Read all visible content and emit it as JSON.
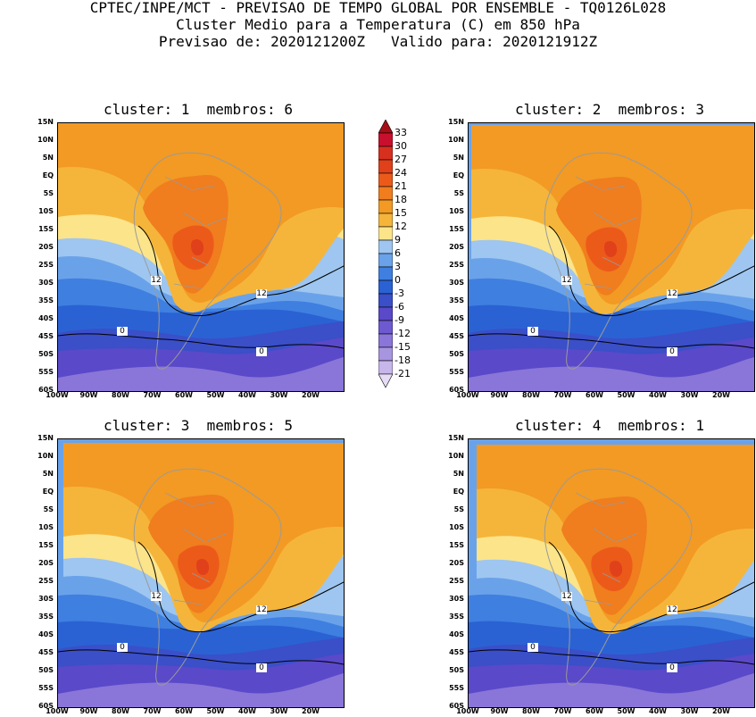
{
  "header": {
    "line1": "CPTEC/INPE/MCT - PREVISAO DE TEMPO GLOBAL POR ENSEMBLE - TQ0126L028",
    "line2": "Cluster Medio para a Temperatura (C) em 850 hPa",
    "line3": "Previsao de: 2020121200Z   Valido para: 2020121912Z"
  },
  "panels": [
    {
      "title": "cluster: 1  membros: 6"
    },
    {
      "title": "cluster: 2  membros: 3"
    },
    {
      "title": "cluster: 3  membros: 5"
    },
    {
      "title": "cluster: 4  membros: 1"
    }
  ],
  "lat_labels": [
    "15N",
    "10N",
    "5N",
    "EQ",
    "5S",
    "10S",
    "15S",
    "20S",
    "25S",
    "30S",
    "35S",
    "40S",
    "45S",
    "50S",
    "55S",
    "60S"
  ],
  "lon_labels": [
    "100W",
    "90W",
    "80W",
    "70W",
    "60W",
    "50W",
    "40W",
    "30W",
    "20W"
  ],
  "contour_labels": [
    "12",
    "0"
  ],
  "colorbar": {
    "levels": [
      "33",
      "30",
      "27",
      "24",
      "21",
      "18",
      "15",
      "12",
      "9",
      "6",
      "3",
      "0",
      "-3",
      "-6",
      "-9",
      "-12",
      "-15",
      "-18",
      "-21"
    ],
    "colors": [
      "#a50f15",
      "#c8102e",
      "#d7301f",
      "#e0401a",
      "#ec5a1a",
      "#f07d1e",
      "#f29a24",
      "#f5b53a",
      "#fce48a",
      "#9ec6f0",
      "#6aa2ea",
      "#3f7fe0",
      "#2a62d4",
      "#3a4fc8",
      "#5a49c9",
      "#6e5ad0",
      "#8a76d8",
      "#a895e0",
      "#c6b6ea",
      "#e6dcf5"
    ]
  }
}
